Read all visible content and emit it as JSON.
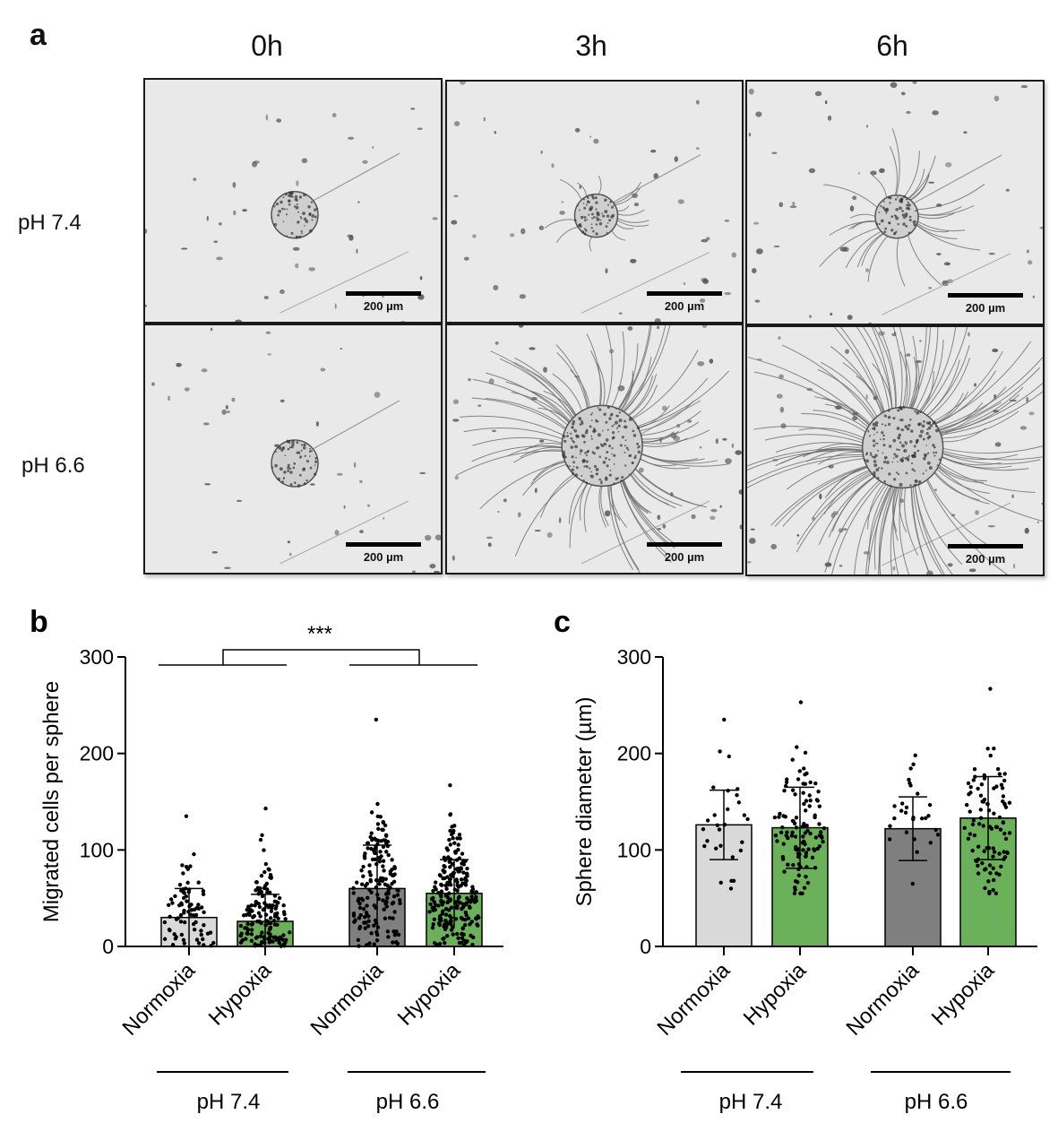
{
  "panel_a": {
    "letter": "a",
    "columns": [
      "0h",
      "3h",
      "6h"
    ],
    "rows": [
      "pH 7.4",
      "pH 6.6"
    ],
    "scale_bar_label": "200 µm"
  },
  "chart_data": [
    {
      "panel": "b",
      "type": "bar",
      "ylabel": "Migrated cells per sphere",
      "ylim": [
        0,
        300
      ],
      "yticks": [
        0,
        100,
        200,
        300
      ],
      "categories": [
        "Normoxia",
        "Hypoxia",
        "Normoxia",
        "Hypoxia"
      ],
      "groups": [
        {
          "label": "pH 7.4",
          "categories": [
            "Normoxia",
            "Hypoxia"
          ]
        },
        {
          "label": "pH 6.6",
          "categories": [
            "Normoxia",
            "Hypoxia"
          ]
        }
      ],
      "values": [
        30,
        26,
        60,
        55
      ],
      "sd": [
        30,
        28,
        45,
        35
      ],
      "point_counts": [
        75,
        150,
        170,
        230
      ],
      "point_max": [
        135,
        143,
        235,
        167
      ],
      "bar_colors": [
        "#d9d9d9",
        "#6ab15a",
        "#7f7f7f",
        "#6ab15a"
      ],
      "significance": "***",
      "grid": false
    },
    {
      "panel": "c",
      "type": "bar",
      "ylabel": "Sphere diameter  (µm)",
      "ylim": [
        0,
        300
      ],
      "yticks": [
        0,
        100,
        200,
        300
      ],
      "categories": [
        "Normoxia",
        "Hypoxia",
        "Normoxia",
        "Hypoxia"
      ],
      "groups": [
        {
          "label": "pH 7.4",
          "categories": [
            "Normoxia",
            "Hypoxia"
          ]
        },
        {
          "label": "pH 6.6",
          "categories": [
            "Normoxia",
            "Hypoxia"
          ]
        }
      ],
      "values": [
        126,
        123,
        122,
        133
      ],
      "sd": [
        36,
        42,
        33,
        43
      ],
      "point_counts": [
        28,
        110,
        28,
        95
      ],
      "point_min": [
        60,
        55,
        65,
        55
      ],
      "point_max": [
        235,
        253,
        198,
        267
      ],
      "bar_colors": [
        "#d9d9d9",
        "#6ab15a",
        "#7f7f7f",
        "#6ab15a"
      ],
      "grid": false
    }
  ]
}
